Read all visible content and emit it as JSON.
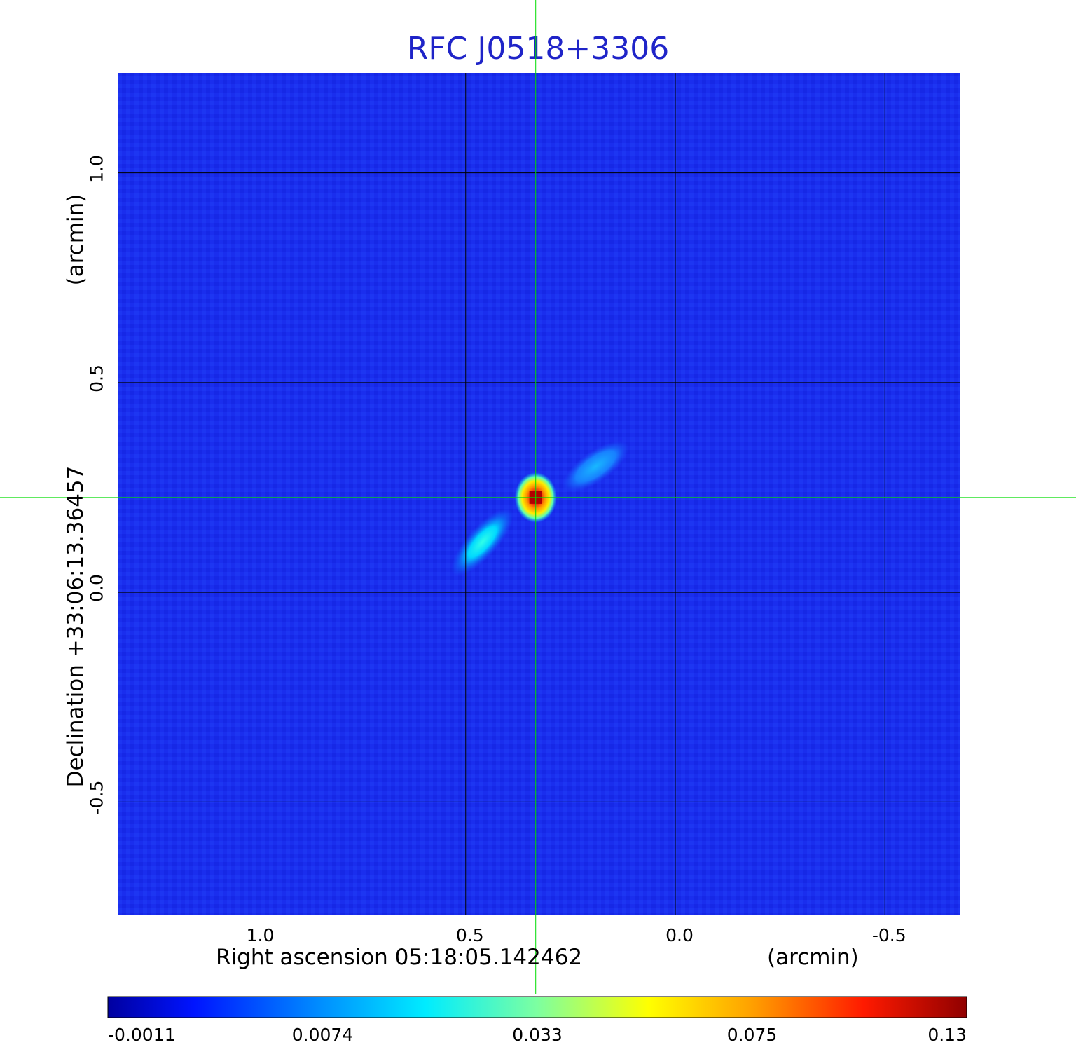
{
  "chart_data": {
    "type": "heatmap",
    "title": "RFC J0518+3306",
    "xlabel": "Right ascension  05:18:05.142462",
    "xunit": "(arcmin)",
    "ylabel": "Declination  +33:06:13.36457",
    "yunit": "(arcmin)",
    "xlim": [
      1.33,
      -0.68
    ],
    "ylim": [
      -0.77,
      1.24
    ],
    "x_ticks": [
      1.0,
      0.5,
      0.0,
      -0.5
    ],
    "x_tick_labels": [
      "1.0",
      "0.5",
      "0.0",
      "-0.5"
    ],
    "y_ticks": [
      1.0,
      0.5,
      0.0,
      -0.5
    ],
    "y_tick_labels": [
      "1.0",
      "0.5",
      "0.0",
      "-0.5"
    ],
    "grid": true,
    "crosshair": {
      "x": 0.333,
      "y": 0.226
    },
    "colormap": "jet",
    "colorbar": {
      "ticks": [
        "-0.0011",
        "0.0074",
        "0.033",
        "0.075",
        "0.13"
      ],
      "min": -0.0011,
      "max": 0.13
    },
    "features": [
      {
        "kind": "core",
        "x": 0.333,
        "y": 0.226,
        "peak": 0.13
      },
      {
        "kind": "jet",
        "x": 0.46,
        "y": 0.12,
        "peak": 0.02
      },
      {
        "kind": "jet",
        "x": 0.19,
        "y": 0.3,
        "peak": 0.012
      }
    ]
  },
  "colors": {
    "title": "#1f24c8",
    "background_field": "#1a2eee",
    "crosshair": "#00dd00",
    "grid": "#000000"
  }
}
